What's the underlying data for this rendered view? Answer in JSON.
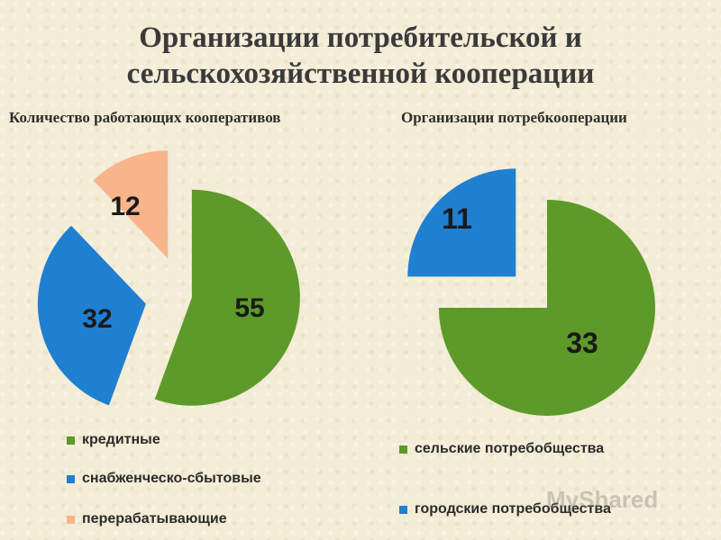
{
  "title_line1": "Организации потребительской и",
  "title_line2": "сельскохозяйственной кооперации",
  "watermark": "MyShared",
  "chart_data": [
    {
      "type": "pie",
      "title": "Количество работающих кооперативов",
      "categories": [
        "кредитные",
        "снабженческо-сбытовые",
        "перерабатывающие"
      ],
      "values": [
        55,
        32,
        12
      ],
      "colors": [
        "#5d9a2a",
        "#1f7fd0",
        "#f8b48a"
      ],
      "legend_position": "bottom"
    },
    {
      "type": "pie",
      "title": "Организации потребкооперации",
      "categories": [
        "сельские потребобщества",
        "городские потребобщества"
      ],
      "values": [
        33,
        11
      ],
      "colors": [
        "#5d9a2a",
        "#1f7fd0"
      ],
      "legend_position": "bottom"
    }
  ]
}
